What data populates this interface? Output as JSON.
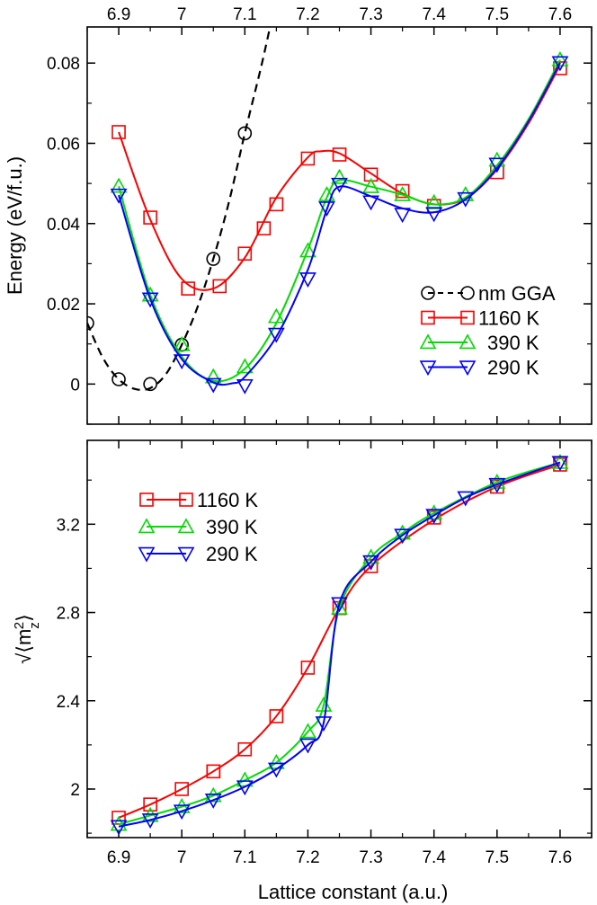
{
  "chart_data": [
    {
      "type": "line",
      "ylabel": "Energy (eV/f.u.)",
      "xlim": [
        6.85,
        7.65
      ],
      "ylim": [
        -0.01,
        0.089
      ],
      "x_ticks": [
        "6.9",
        "7",
        "7.1",
        "7.2",
        "7.3",
        "7.4",
        "7.5",
        "7.6"
      ],
      "y_ticks": [
        "0",
        "0.02",
        "0.04",
        "0.06",
        "0.08"
      ],
      "legend_position": "right-middle",
      "series": [
        {
          "name": "nm GGA",
          "color": "#000000",
          "marker": "circle",
          "line": "dashed",
          "x": [
            6.85,
            6.9,
            6.95,
            7.0,
            7.05,
            7.1
          ],
          "y": [
            0.0152,
            0.0012,
            0.0,
            0.0098,
            0.0312,
            0.0625
          ],
          "curve": [
            [
              6.85,
              0.0152
            ],
            [
              6.875,
              0.0065
            ],
            [
              6.9,
              0.0012
            ],
            [
              6.925,
              -0.0012
            ],
            [
              6.95,
              -0.001
            ],
            [
              6.975,
              0.0025
            ],
            [
              7.0,
              0.0098
            ],
            [
              7.025,
              0.0192
            ],
            [
              7.05,
              0.0312
            ],
            [
              7.075,
              0.0455
            ],
            [
              7.1,
              0.0625
            ],
            [
              7.125,
              0.0785
            ],
            [
              7.14,
              0.089
            ]
          ]
        },
        {
          "name": "1160 K",
          "color": "#ff0000",
          "marker": "square",
          "x": [
            6.9,
            6.95,
            7.01,
            7.06,
            7.1,
            7.13,
            7.15,
            7.2,
            7.25,
            7.3,
            7.35,
            7.4,
            7.5,
            7.6
          ],
          "y": [
            0.0628,
            0.0415,
            0.0238,
            0.0244,
            0.0325,
            0.0388,
            0.0448,
            0.0562,
            0.0572,
            0.0522,
            0.0481,
            0.0444,
            0.0528,
            0.0787
          ],
          "curve": [
            [
              6.9,
              0.0628
            ],
            [
              6.95,
              0.041
            ],
            [
              7.0,
              0.0262
            ],
            [
              7.05,
              0.0238
            ],
            [
              7.1,
              0.0315
            ],
            [
              7.15,
              0.0465
            ],
            [
              7.2,
              0.0565
            ],
            [
              7.22,
              0.058
            ],
            [
              7.25,
              0.0575
            ],
            [
              7.3,
              0.0525
            ],
            [
              7.35,
              0.0475
            ],
            [
              7.4,
              0.0448
            ],
            [
              7.45,
              0.0462
            ],
            [
              7.5,
              0.0535
            ],
            [
              7.55,
              0.065
            ],
            [
              7.6,
              0.0795
            ]
          ]
        },
        {
          "name": "390 K",
          "color": "#00dd00",
          "marker": "triangle-up",
          "x": [
            6.9,
            6.95,
            7.0,
            7.05,
            7.1,
            7.15,
            7.2,
            7.23,
            7.25,
            7.3,
            7.35,
            7.4,
            7.45,
            7.5,
            7.6
          ],
          "y": [
            0.0493,
            0.0222,
            0.0098,
            0.0018,
            0.0043,
            0.0168,
            0.0332,
            0.0472,
            0.0515,
            0.0492,
            0.0472,
            0.0452,
            0.0472,
            0.0558,
            0.0808
          ],
          "curve": [
            [
              6.9,
              0.0493
            ],
            [
              6.95,
              0.0222
            ],
            [
              7.0,
              0.0068
            ],
            [
              7.05,
              0.0008
            ],
            [
              7.1,
              0.0038
            ],
            [
              7.15,
              0.0152
            ],
            [
              7.2,
              0.0335
            ],
            [
              7.23,
              0.0465
            ],
            [
              7.25,
              0.0508
            ],
            [
              7.3,
              0.0492
            ],
            [
              7.35,
              0.0472
            ],
            [
              7.4,
              0.0448
            ],
            [
              7.45,
              0.0465
            ],
            [
              7.5,
              0.0545
            ],
            [
              7.55,
              0.066
            ],
            [
              7.6,
              0.0808
            ]
          ]
        },
        {
          "name": "290 K",
          "color": "#0000ff",
          "marker": "triangle-down",
          "x": [
            6.9,
            6.95,
            7.0,
            7.05,
            7.1,
            7.15,
            7.2,
            7.23,
            7.25,
            7.3,
            7.35,
            7.4,
            7.45,
            7.5,
            7.6
          ],
          "y": [
            0.0471,
            0.0212,
            0.0058,
            -0.0001,
            -0.0004,
            0.0124,
            0.0262,
            0.0439,
            0.0498,
            0.0454,
            0.0423,
            0.0425,
            0.0462,
            0.0548,
            0.0801
          ],
          "curve": [
            [
              6.9,
              0.0471
            ],
            [
              6.95,
              0.0212
            ],
            [
              7.0,
              0.0062
            ],
            [
              7.05,
              0.0004
            ],
            [
              7.08,
              0.0002
            ],
            [
              7.1,
              0.0018
            ],
            [
              7.15,
              0.0118
            ],
            [
              7.2,
              0.0285
            ],
            [
              7.23,
              0.0435
            ],
            [
              7.25,
              0.0492
            ],
            [
              7.3,
              0.0468
            ],
            [
              7.35,
              0.0438
            ],
            [
              7.4,
              0.0428
            ],
            [
              7.45,
              0.046
            ],
            [
              7.5,
              0.0538
            ],
            [
              7.55,
              0.0655
            ],
            [
              7.6,
              0.0801
            ]
          ]
        }
      ]
    },
    {
      "type": "line",
      "xlabel": "Lattice constant (a.u.)",
      "ylabel": "√⟨m_z²⟩",
      "ylabel_parts": {
        "radical": "√",
        "open": "⟨m",
        "sub": "z",
        "sup": "2",
        "close": "⟩"
      },
      "xlim": [
        6.85,
        7.65
      ],
      "ylim": [
        1.78,
        3.58
      ],
      "x_ticks": [
        "6.9",
        "7",
        "7.1",
        "7.2",
        "7.3",
        "7.4",
        "7.5",
        "7.6"
      ],
      "y_ticks": [
        "2",
        "2.4",
        "2.8",
        "3.2"
      ],
      "legend_position": "top-left",
      "series": [
        {
          "name": "1160 K",
          "color": "#ff0000",
          "marker": "square",
          "x": [
            6.9,
            6.95,
            7.0,
            7.05,
            7.1,
            7.15,
            7.2,
            7.25,
            7.3,
            7.4,
            7.5,
            7.6
          ],
          "y": [
            1.87,
            1.93,
            2.0,
            2.08,
            2.18,
            2.33,
            2.55,
            2.82,
            3.01,
            3.23,
            3.37,
            3.47
          ],
          "curve": [
            [
              6.9,
              1.87
            ],
            [
              6.95,
              1.93
            ],
            [
              7.0,
              2.0
            ],
            [
              7.05,
              2.08
            ],
            [
              7.1,
              2.18
            ],
            [
              7.15,
              2.33
            ],
            [
              7.2,
              2.55
            ],
            [
              7.25,
              2.82
            ],
            [
              7.3,
              3.01
            ],
            [
              7.4,
              3.22
            ],
            [
              7.5,
              3.37
            ],
            [
              7.6,
              3.47
            ]
          ]
        },
        {
          "name": "390 K",
          "color": "#00dd00",
          "marker": "triangle-up",
          "x": [
            6.9,
            6.95,
            7.0,
            7.05,
            7.1,
            7.15,
            7.2,
            7.225,
            7.25,
            7.3,
            7.35,
            7.4,
            7.5,
            7.6
          ],
          "y": [
            1.84,
            1.88,
            1.92,
            1.97,
            2.04,
            2.12,
            2.26,
            2.38,
            2.82,
            3.05,
            3.16,
            3.25,
            3.39,
            3.48
          ],
          "curve": [
            [
              6.9,
              1.84
            ],
            [
              6.95,
              1.88
            ],
            [
              7.0,
              1.92
            ],
            [
              7.05,
              1.97
            ],
            [
              7.1,
              2.04
            ],
            [
              7.15,
              2.12
            ],
            [
              7.2,
              2.26
            ],
            [
              7.225,
              2.38
            ],
            [
              7.25,
              2.82
            ],
            [
              7.3,
              3.05
            ],
            [
              7.35,
              3.16
            ],
            [
              7.4,
              3.25
            ],
            [
              7.5,
              3.39
            ],
            [
              7.6,
              3.48
            ]
          ]
        },
        {
          "name": "290 K",
          "color": "#0000ff",
          "marker": "triangle-down",
          "x": [
            6.9,
            6.95,
            7.0,
            7.05,
            7.1,
            7.15,
            7.2,
            7.225,
            7.25,
            7.3,
            7.35,
            7.4,
            7.45,
            7.5,
            7.6
          ],
          "y": [
            1.83,
            1.86,
            1.9,
            1.95,
            2.01,
            2.09,
            2.2,
            2.3,
            2.84,
            3.03,
            3.15,
            3.24,
            3.32,
            3.38,
            3.48
          ],
          "curve": [
            [
              6.9,
              1.83
            ],
            [
              6.95,
              1.86
            ],
            [
              7.0,
              1.9
            ],
            [
              7.05,
              1.95
            ],
            [
              7.1,
              2.01
            ],
            [
              7.15,
              2.09
            ],
            [
              7.2,
              2.2
            ],
            [
              7.225,
              2.3
            ],
            [
              7.25,
              2.84
            ],
            [
              7.3,
              3.03
            ],
            [
              7.35,
              3.15
            ],
            [
              7.4,
              3.24
            ],
            [
              7.45,
              3.32
            ],
            [
              7.5,
              3.38
            ],
            [
              7.6,
              3.48
            ]
          ]
        }
      ]
    }
  ]
}
